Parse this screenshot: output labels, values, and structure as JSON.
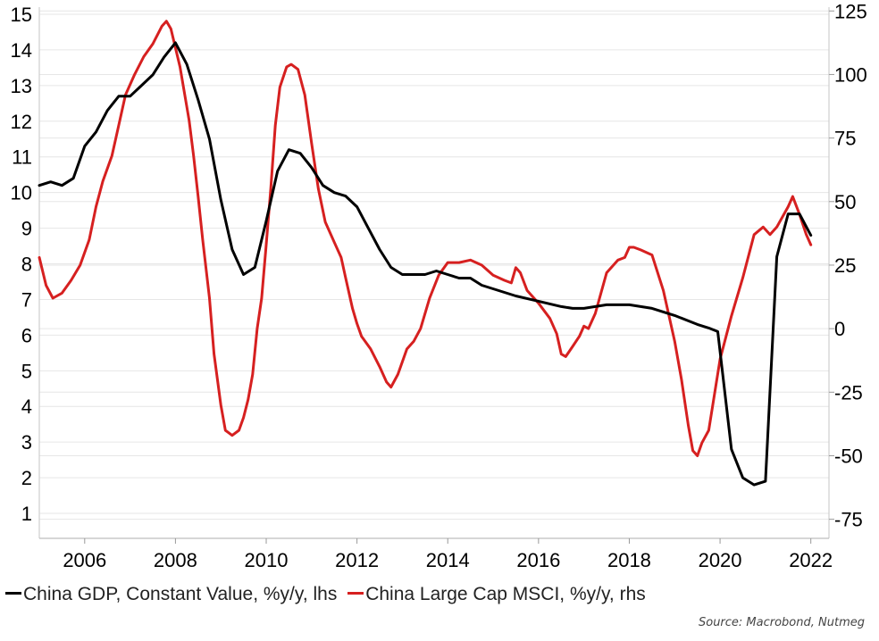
{
  "chart_data": {
    "type": "line",
    "title": "",
    "colors": {
      "gdp": "#000000",
      "msci": "#d62020",
      "grid": "#e6e6e6"
    },
    "x_ticks": [
      "2006",
      "2008",
      "2010",
      "2012",
      "2014",
      "2016",
      "2018",
      "2020",
      "2022"
    ],
    "x_range": [
      2005.0,
      2022.4
    ],
    "left_axis": {
      "label": "",
      "range": [
        0.3,
        15.2
      ],
      "ticks": [
        "1",
        "2",
        "3",
        "4",
        "5",
        "6",
        "7",
        "8",
        "9",
        "10",
        "11",
        "12",
        "13",
        "14",
        "15"
      ]
    },
    "right_axis": {
      "label": "",
      "range": [
        -82.5,
        126.5
      ],
      "ticks": [
        "125",
        "100",
        "75",
        "50",
        "25",
        "0",
        "-25",
        "-50",
        "-75"
      ]
    },
    "grid": true,
    "legend_position": "bottom",
    "series": [
      {
        "key": "gdp",
        "name": "China GDP, Constant Value, %y/y, lhs",
        "axis": "left",
        "points": [
          [
            2005.0,
            10.2
          ],
          [
            2005.25,
            10.3
          ],
          [
            2005.5,
            10.2
          ],
          [
            2005.75,
            10.4
          ],
          [
            2006.0,
            11.3
          ],
          [
            2006.25,
            11.7
          ],
          [
            2006.5,
            12.3
          ],
          [
            2006.75,
            12.7
          ],
          [
            2007.0,
            12.7
          ],
          [
            2007.25,
            13.0
          ],
          [
            2007.5,
            13.3
          ],
          [
            2007.75,
            13.8
          ],
          [
            2008.0,
            14.2
          ],
          [
            2008.25,
            13.6
          ],
          [
            2008.5,
            12.6
          ],
          [
            2008.75,
            11.5
          ],
          [
            2009.0,
            9.8
          ],
          [
            2009.25,
            8.4
          ],
          [
            2009.5,
            7.7
          ],
          [
            2009.75,
            7.9
          ],
          [
            2010.0,
            9.2
          ],
          [
            2010.25,
            10.6
          ],
          [
            2010.5,
            11.2
          ],
          [
            2010.75,
            11.1
          ],
          [
            2011.0,
            10.7
          ],
          [
            2011.25,
            10.2
          ],
          [
            2011.5,
            10.0
          ],
          [
            2011.75,
            9.9
          ],
          [
            2012.0,
            9.6
          ],
          [
            2012.25,
            9.0
          ],
          [
            2012.5,
            8.4
          ],
          [
            2012.75,
            7.9
          ],
          [
            2013.0,
            7.7
          ],
          [
            2013.5,
            7.7
          ],
          [
            2013.75,
            7.8
          ],
          [
            2014.0,
            7.7
          ],
          [
            2014.25,
            7.6
          ],
          [
            2014.5,
            7.6
          ],
          [
            2014.75,
            7.4
          ],
          [
            2015.0,
            7.3
          ],
          [
            2015.5,
            7.1
          ],
          [
            2016.0,
            6.95
          ],
          [
            2016.5,
            6.8
          ],
          [
            2016.75,
            6.75
          ],
          [
            2017.0,
            6.75
          ],
          [
            2017.5,
            6.85
          ],
          [
            2018.0,
            6.85
          ],
          [
            2018.5,
            6.75
          ],
          [
            2019.0,
            6.55
          ],
          [
            2019.5,
            6.3
          ],
          [
            2019.75,
            6.2
          ],
          [
            2019.95,
            6.1
          ],
          [
            2020.25,
            2.8
          ],
          [
            2020.5,
            2.0
          ],
          [
            2020.75,
            1.8
          ],
          [
            2021.0,
            1.9
          ],
          [
            2021.25,
            8.2
          ],
          [
            2021.5,
            9.4
          ],
          [
            2021.75,
            9.4
          ],
          [
            2022.0,
            8.8
          ]
        ]
      },
      {
        "key": "msci",
        "name": "China Large Cap MSCI, %y/y, rhs",
        "axis": "right",
        "points": [
          [
            2005.0,
            28
          ],
          [
            2005.15,
            17
          ],
          [
            2005.3,
            12
          ],
          [
            2005.5,
            14
          ],
          [
            2005.7,
            19
          ],
          [
            2005.9,
            25
          ],
          [
            2006.1,
            35
          ],
          [
            2006.25,
            48
          ],
          [
            2006.4,
            58
          ],
          [
            2006.6,
            68
          ],
          [
            2006.75,
            80
          ],
          [
            2006.9,
            92
          ],
          [
            2007.1,
            100
          ],
          [
            2007.3,
            107
          ],
          [
            2007.5,
            112
          ],
          [
            2007.7,
            119
          ],
          [
            2007.8,
            121
          ],
          [
            2007.9,
            118
          ],
          [
            2008.1,
            103
          ],
          [
            2008.3,
            82
          ],
          [
            2008.4,
            68
          ],
          [
            2008.5,
            52
          ],
          [
            2008.6,
            35
          ],
          [
            2008.75,
            12
          ],
          [
            2008.85,
            -10
          ],
          [
            2009.0,
            -30
          ],
          [
            2009.1,
            -40
          ],
          [
            2009.25,
            -42
          ],
          [
            2009.4,
            -40
          ],
          [
            2009.5,
            -35
          ],
          [
            2009.6,
            -28
          ],
          [
            2009.7,
            -18
          ],
          [
            2009.8,
            0
          ],
          [
            2009.9,
            12
          ],
          [
            2010.0,
            33
          ],
          [
            2010.1,
            55
          ],
          [
            2010.2,
            80
          ],
          [
            2010.3,
            95
          ],
          [
            2010.45,
            103
          ],
          [
            2010.55,
            104
          ],
          [
            2010.7,
            102
          ],
          [
            2010.85,
            92
          ],
          [
            2011.0,
            73
          ],
          [
            2011.15,
            55
          ],
          [
            2011.3,
            42
          ],
          [
            2011.5,
            34
          ],
          [
            2011.65,
            28
          ],
          [
            2011.75,
            20
          ],
          [
            2011.9,
            8
          ],
          [
            2012.0,
            2
          ],
          [
            2012.1,
            -3
          ],
          [
            2012.3,
            -8
          ],
          [
            2012.5,
            -15
          ],
          [
            2012.65,
            -21
          ],
          [
            2012.75,
            -23
          ],
          [
            2012.9,
            -18
          ],
          [
            2013.1,
            -8
          ],
          [
            2013.25,
            -5
          ],
          [
            2013.4,
            0
          ],
          [
            2013.6,
            12
          ],
          [
            2013.8,
            21
          ],
          [
            2014.0,
            26
          ],
          [
            2014.25,
            26
          ],
          [
            2014.5,
            27
          ],
          [
            2014.75,
            25
          ],
          [
            2015.0,
            21
          ],
          [
            2015.25,
            19
          ],
          [
            2015.4,
            18
          ],
          [
            2015.5,
            24
          ],
          [
            2015.6,
            22
          ],
          [
            2015.75,
            15
          ],
          [
            2015.9,
            12
          ],
          [
            2016.0,
            10
          ],
          [
            2016.25,
            4
          ],
          [
            2016.4,
            -2
          ],
          [
            2016.5,
            -10
          ],
          [
            2016.6,
            -11
          ],
          [
            2016.75,
            -7
          ],
          [
            2016.9,
            -3
          ],
          [
            2017.0,
            1
          ],
          [
            2017.1,
            0
          ],
          [
            2017.25,
            6
          ],
          [
            2017.5,
            22
          ],
          [
            2017.75,
            27
          ],
          [
            2017.9,
            28
          ],
          [
            2018.0,
            32
          ],
          [
            2018.1,
            32
          ],
          [
            2018.25,
            31
          ],
          [
            2018.5,
            29
          ],
          [
            2018.75,
            15
          ],
          [
            2019.0,
            -5
          ],
          [
            2019.15,
            -20
          ],
          [
            2019.3,
            -38
          ],
          [
            2019.4,
            -48
          ],
          [
            2019.5,
            -50
          ],
          [
            2019.6,
            -45
          ],
          [
            2019.75,
            -40
          ],
          [
            2020.0,
            -12
          ],
          [
            2020.25,
            5
          ],
          [
            2020.5,
            20
          ],
          [
            2020.75,
            37
          ],
          [
            2020.95,
            40
          ],
          [
            2021.1,
            37
          ],
          [
            2021.25,
            40
          ],
          [
            2021.5,
            48
          ],
          [
            2021.6,
            52
          ],
          [
            2021.75,
            45
          ],
          [
            2021.9,
            37
          ],
          [
            2022.0,
            33
          ]
        ]
      }
    ],
    "source": "Source: Macrobond, Nutmeg"
  }
}
